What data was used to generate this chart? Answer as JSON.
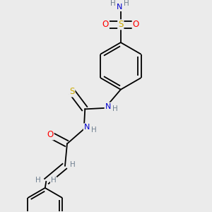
{
  "bg_color": "#ebebeb",
  "atom_colors": {
    "C": "#000000",
    "H": "#708090",
    "N": "#0000cd",
    "O": "#ff0000",
    "S": "#ccaa00"
  },
  "bond_color": "#000000",
  "bond_width": 1.3,
  "figsize": [
    3.0,
    3.0
  ],
  "dpi": 100
}
